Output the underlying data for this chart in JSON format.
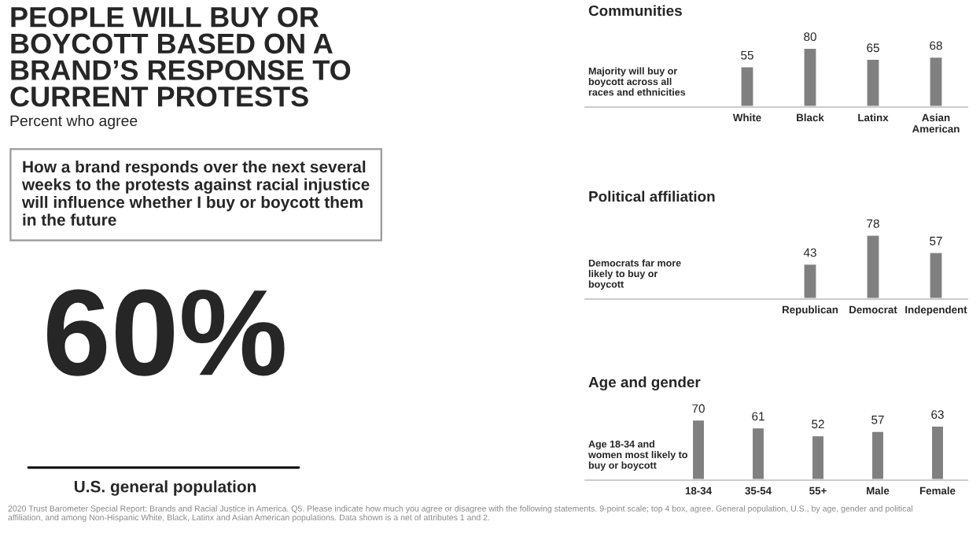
{
  "chart_data": [
    {
      "type": "other",
      "title": "PEOPLE WILL BUY OR BOYCOTT BASED ON A BRAND’S RESPONSE TO CURRENT PROTESTS",
      "subtitle": "Percent who agree",
      "annotations": [
        "How a brand responds over the next several weeks to the protests against racial injustice will influence whether I buy or boycott them in the future",
        "60%",
        "U.S. general population",
        "2020 Trust Barometer Special Report: Brands and Racial Justice in America. Q5. Please indicate how much you agree or disagree with the following statements. 9-point scale; top 4 box, agree. General population, U.S., by age, gender and political affiliation, and among Non-Hispanic White, Black, Latinx and Asian American populations. Data shown is a net of attributes 1 and 2."
      ]
    },
    {
      "type": "bar",
      "title": "Communities",
      "annotations": [
        "Majority will buy or boycott across all races and ethnicities"
      ],
      "categories": [
        "White",
        "Black",
        "Latinx",
        "Asian American"
      ],
      "values": [
        55,
        80,
        65,
        68
      ],
      "color": "#808080",
      "data_labels": true
    },
    {
      "type": "bar",
      "title": "Political affiliation",
      "annotations": [
        "Democrats far more likely to buy or boycott"
      ],
      "categories": [
        "Republican",
        "Democrat",
        "Independent"
      ],
      "values": [
        43,
        78,
        57
      ],
      "color": "#808080",
      "data_labels": true
    },
    {
      "type": "bar",
      "title": "Age and gender",
      "annotations": [
        "Age 18-34 and women most likely to buy or boycott"
      ],
      "categories": [
        "18-34",
        "35-54",
        "55+",
        "Male",
        "Female"
      ],
      "values": [
        70,
        61,
        52,
        57,
        63
      ],
      "color": "#808080",
      "data_labels": true
    }
  ]
}
